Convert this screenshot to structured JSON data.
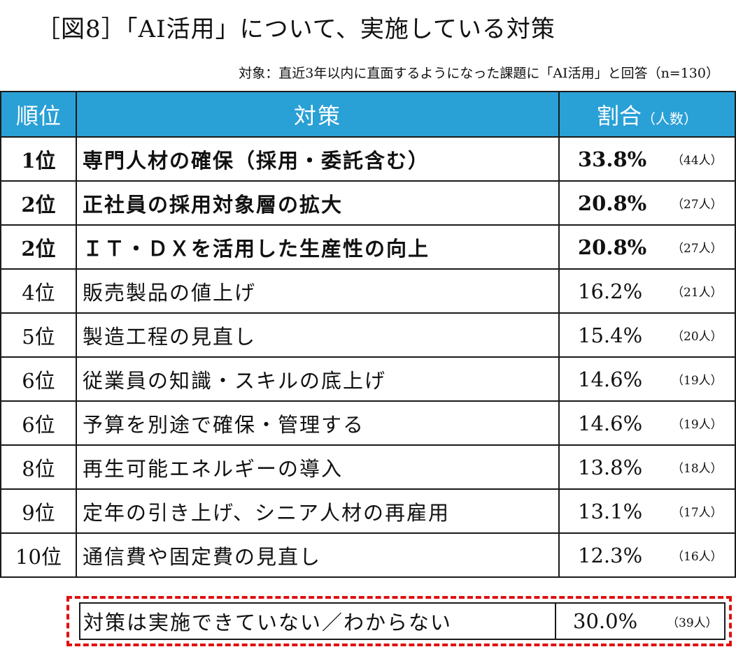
{
  "title": "［図8］「AI活用」について、実施している対策",
  "subtitle": "対象：直近3年以内に直面するようになった課題に「AI活用」と回答（n=130）",
  "header": {
    "rank": "順位",
    "measure": "対策",
    "rate": "割合",
    "rate_sub": "（人数）"
  },
  "rows": [
    {
      "rank": "1位",
      "measure": "専門人材の確保（採用・委託含む）",
      "pct": "33.8%",
      "count": "（44人）"
    },
    {
      "rank": "2位",
      "measure": "正社員の採用対象層の拡大",
      "pct": "20.8%",
      "count": "（27人）"
    },
    {
      "rank": "2位",
      "measure": "ＩＴ・ＤＸを活用した生産性の向上",
      "pct": "20.8%",
      "count": "（27人）"
    },
    {
      "rank": "4位",
      "measure": "販売製品の値上げ",
      "pct": "16.2%",
      "count": "（21人）"
    },
    {
      "rank": "5位",
      "measure": "製造工程の見直し",
      "pct": "15.4%",
      "count": "（20人）"
    },
    {
      "rank": "6位",
      "measure": "従業員の知識・スキルの底上げ",
      "pct": "14.6%",
      "count": "（19人）"
    },
    {
      "rank": "6位",
      "measure": "予算を別途で確保・管理する",
      "pct": "14.6%",
      "count": "（19人）"
    },
    {
      "rank": "8位",
      "measure": "再生可能エネルギーの導入",
      "pct": "13.8%",
      "count": "（18人）"
    },
    {
      "rank": "9位",
      "measure": "定年の引き上げ、シニア人材の再雇用",
      "pct": "13.1%",
      "count": "（17人）"
    },
    {
      "rank": "10位",
      "measure": "通信費や固定費の見直し",
      "pct": "12.3%",
      "count": "（16人）"
    }
  ],
  "extra": {
    "measure": "対策は実施できていない／わからない",
    "pct": "30.0%",
    "count": "（39人）"
  },
  "colors": {
    "header_bg": "#29a0d6",
    "highlight_border": "#e01010"
  }
}
